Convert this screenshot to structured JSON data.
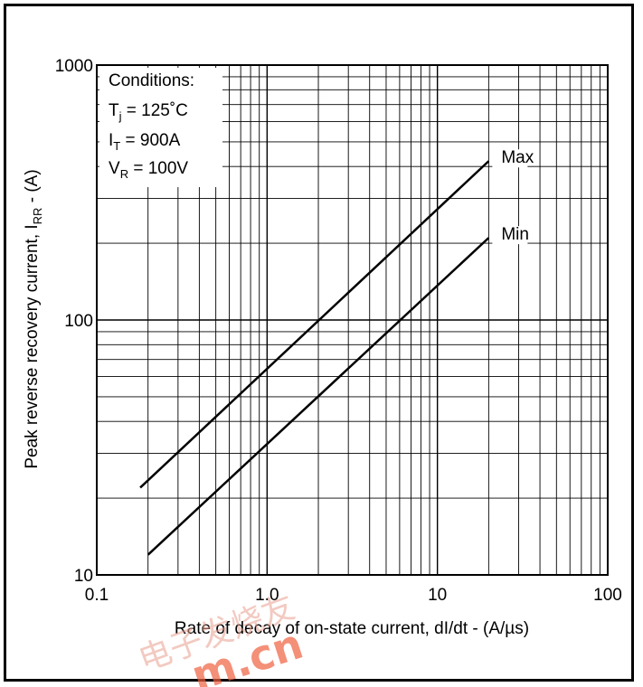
{
  "chart_data": {
    "type": "line",
    "x_scale": "log",
    "y_scale": "log",
    "xlim": [
      0.1,
      100
    ],
    "ylim": [
      10,
      1000
    ],
    "xlabel": "Rate of decay of on-state current, dI/dt - (A/µs)",
    "ylabel": {
      "main": "Peak reverse recovery current, I",
      "sub": "RR",
      "tail": " - (A)"
    },
    "x_ticks": [
      {
        "value": 0.1,
        "label": "0.1"
      },
      {
        "value": 1,
        "label": "1.0"
      },
      {
        "value": 10,
        "label": "10"
      },
      {
        "value": 100,
        "label": "100"
      }
    ],
    "y_ticks": [
      {
        "value": 10,
        "label": "10"
      },
      {
        "value": 100,
        "label": "100"
      },
      {
        "value": 1000,
        "label": "1000"
      }
    ],
    "grid": true,
    "series": [
      {
        "name": "Max",
        "x": [
          0.18,
          20
        ],
        "y": [
          22,
          420
        ]
      },
      {
        "name": "Min",
        "x": [
          0.2,
          20
        ],
        "y": [
          12,
          210
        ]
      }
    ],
    "conditions": {
      "title": "Conditions:",
      "lines": [
        {
          "main": "T",
          "sub": "j",
          "tail": " = 125˚C"
        },
        {
          "main": "I",
          "sub": "T",
          "tail": " = 900A"
        },
        {
          "main": "V",
          "sub": "R",
          "tail": " = 100V"
        }
      ]
    }
  },
  "watermark": {
    "text": "电子发烧友",
    "domain": "m.cn"
  }
}
